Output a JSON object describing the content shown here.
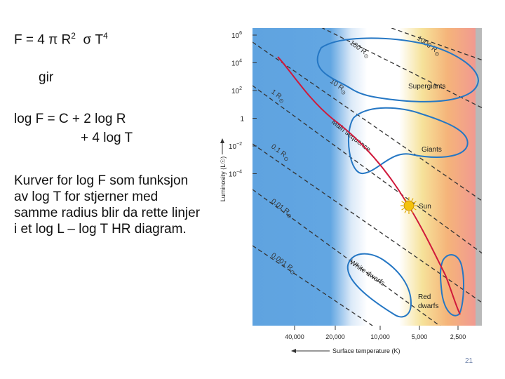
{
  "slide": {
    "formula": {
      "prefix": "F = 4 ",
      "pi": "π",
      "r": " R",
      "r_exp": "2",
      "sigma": "σ",
      "t": " T",
      "t_exp": "4"
    },
    "gir": "gir",
    "equation_line1": "log F = C + 2 log R",
    "equation_line2": "+ 4 log T",
    "explanation": "Kurver for log F som funksjon av log T for stjerner med samme radius blir da rette linjer i et log L – log T HR diagram.",
    "page_number": "21"
  },
  "chart_data": {
    "type": "diagram",
    "title": "",
    "ylabel": "Luminosity (L☉)",
    "xlabel": "Surface temperature (K)",
    "y_ticks": [
      {
        "value": 6,
        "base": "10",
        "exp": "6"
      },
      {
        "value": 4,
        "base": "10",
        "exp": "4"
      },
      {
        "value": 2,
        "base": "10",
        "exp": "2"
      },
      {
        "value": 0,
        "base": "1",
        "exp": ""
      },
      {
        "value": -2,
        "base": "10",
        "exp": "−2"
      },
      {
        "value": -4,
        "base": "10",
        "exp": "−4"
      }
    ],
    "x_ticks": [
      "40,000",
      "20,000",
      "10,000",
      "5,000",
      "2,500"
    ],
    "radius_lines": [
      {
        "label": "1000 R",
        "sym": "⊙"
      },
      {
        "label": "100 R",
        "sym": "⊙"
      },
      {
        "label": "10 R",
        "sym": "⊙"
      },
      {
        "label": "1 R",
        "sym": "⊙"
      },
      {
        "label": "0.1 R",
        "sym": "⊙"
      },
      {
        "label": "0.01 R",
        "sym": "⊙"
      },
      {
        "label": "0.001 R",
        "sym": "⊙"
      }
    ],
    "regions": {
      "supergiants": "Supergiants",
      "giants": "Giants",
      "main_sequence": "Main sequence",
      "sun": "Sun",
      "white_dwarfs": "White dwarfs",
      "red_dwarfs_1": "Red",
      "red_dwarfs_2": "dwarfs"
    },
    "colors": {
      "blue": "#5fa3e0",
      "white": "#ffffff",
      "yellow": "#f6e29a",
      "orange": "#f5b47a",
      "red": "#f19a90",
      "curve": "#2577c4",
      "main_sequence": "#d0193b",
      "sun": "#f4c20d"
    }
  }
}
